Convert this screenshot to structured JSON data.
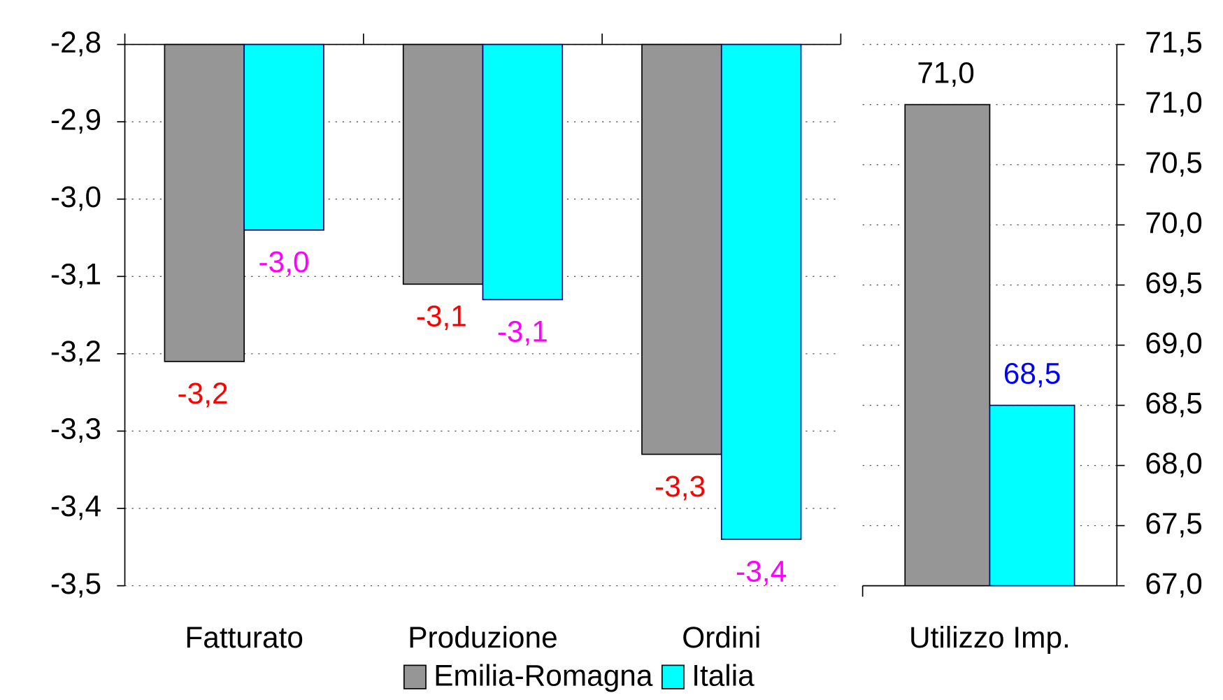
{
  "chart_data": [
    {
      "type": "bar",
      "categories": [
        "Fatturato",
        "Produzione",
        "Ordini"
      ],
      "series": [
        {
          "name": "Emilia-Romagna",
          "color": "#969696",
          "label_color": "#ff0000",
          "values": [
            -3.21,
            -3.11,
            -3.33
          ],
          "value_labels": [
            "-3,2",
            "-3,1",
            "-3,3"
          ]
        },
        {
          "name": "Italia",
          "color": "#00ffff",
          "label_color": "#ff00ff",
          "values": [
            -3.04,
            -3.13,
            -3.44
          ],
          "value_labels": [
            "-3,0",
            "-3,1",
            "-3,4"
          ]
        }
      ],
      "ylim": [
        -3.5,
        -2.8
      ],
      "yticks": [
        {
          "value": -3.5,
          "label": "-3,5"
        },
        {
          "value": -3.4,
          "label": "-3,4"
        },
        {
          "value": -3.3,
          "label": "-3,3"
        },
        {
          "value": -3.2,
          "label": "-3,2"
        },
        {
          "value": -3.1,
          "label": "-3,1"
        },
        {
          "value": -3.0,
          "label": "-3,0"
        },
        {
          "value": -2.9,
          "label": "-2,9"
        },
        {
          "value": -2.8,
          "label": "-2,8"
        }
      ],
      "y_axis_position": "left",
      "grid": true,
      "legend": "bottom"
    },
    {
      "type": "bar",
      "categories": [
        "Utilizzo Imp."
      ],
      "series": [
        {
          "color": "#969696",
          "label_color": "#000000",
          "values": [
            71.0
          ],
          "value_labels": [
            "71,0"
          ]
        },
        {
          "color": "#00ffff",
          "label_color": "#0000ff",
          "values": [
            68.5
          ],
          "value_labels": [
            "68,5"
          ]
        }
      ],
      "ylim": [
        67,
        71.5
      ],
      "yticks": [
        {
          "value": 67,
          "label": "67,0"
        },
        {
          "value": 67.5,
          "label": "67,5"
        },
        {
          "value": 68,
          "label": "68,0"
        },
        {
          "value": 68.5,
          "label": "68,5"
        },
        {
          "value": 69,
          "label": "69,0"
        },
        {
          "value": 69.5,
          "label": "69,5"
        },
        {
          "value": 70,
          "label": "70,0"
        },
        {
          "value": 70.5,
          "label": "70,5"
        },
        {
          "value": 71,
          "label": "71,0"
        },
        {
          "value": 71.5,
          "label": "71,5"
        }
      ],
      "y_axis_position": "right",
      "grid": true
    }
  ]
}
